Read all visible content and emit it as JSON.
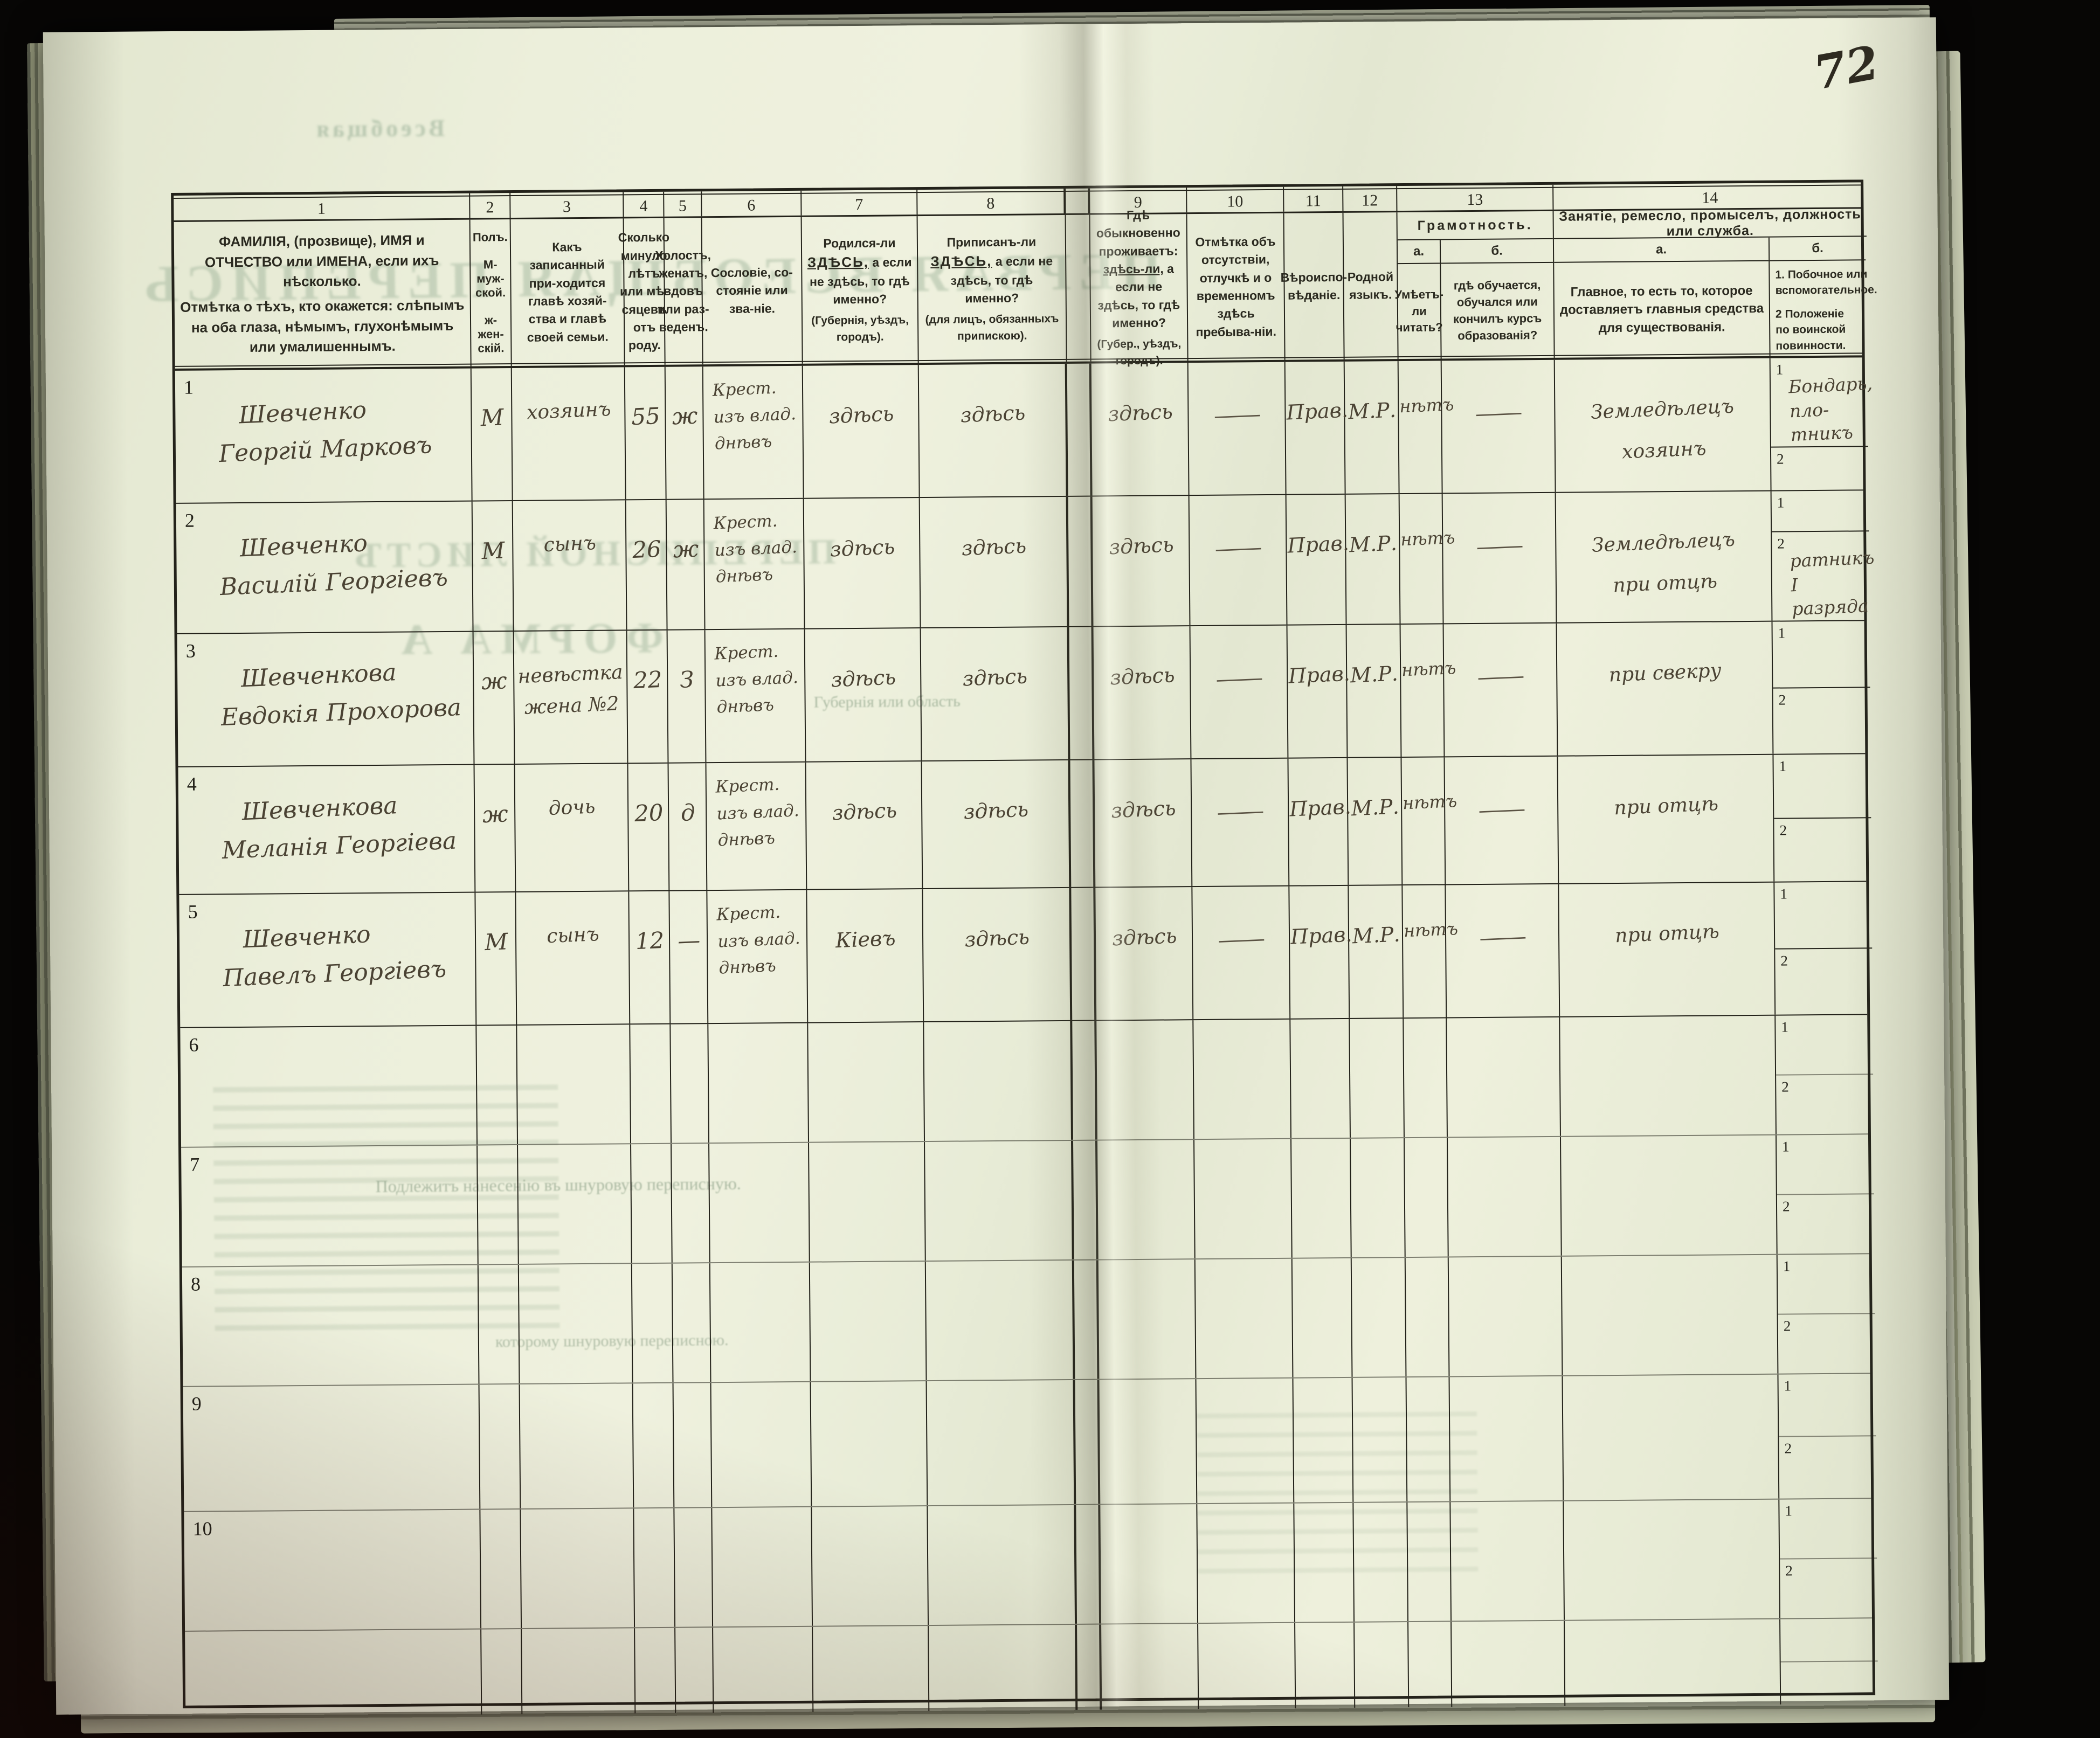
{
  "page": {
    "number": "72"
  },
  "form": {
    "col_numbers": [
      "1",
      "2",
      "3",
      "4",
      "5",
      "6",
      "7",
      "8",
      "9",
      "10",
      "11",
      "12",
      "13",
      "14"
    ],
    "sub1": "1",
    "sub2": "2",
    "headers": {
      "c1a": "ФАМИЛІЯ, (прозвище), ИМЯ и ОТЧЕСТВО или ИМЕНА, если ихъ нѣсколько.",
      "c1b": "Отмѣтка о тѣхъ, кто окажется: слѣпымъ на оба глаза, нѣмымъ, глухонѣмымъ или умалишеннымъ.",
      "c2_title": "Полъ.",
      "c2_m": "М-муж-ской.",
      "c2_f": "ж-жен-скій.",
      "c3": "Какъ записанный при-ходится главѣ хозяй-ства и главѣ своей семьи.",
      "c4": "Сколько минуло лѣтъ или мѣ-сяцевъ отъ роду.",
      "c5": "Холостъ, женатъ, вдовъ или раз-веденъ.",
      "c6": "Сословіе, со-стояніе или зва-ніе.",
      "c7": {
        "lead": "Родился-ли",
        "u": "ЗДѢСЬ,",
        "rest": "а если не здѣсь, то гдѣ именно?",
        "note": "(Губернія, уѣздъ, городъ)."
      },
      "c8": {
        "lead": "Приписанъ-ли",
        "u": "ЗДѢСЬ,",
        "rest": "а если не здѣсь, то гдѣ именно?",
        "note": "(для лицъ, обязанныхъ припискою)."
      },
      "c9": {
        "lead": "Гдѣ обыкновенно проживаетъ:",
        "u": "здѣсь-ли,",
        "rest": "а если не здѣсь, то гдѣ именно?",
        "note": "(Губер., уѣздъ, городъ)."
      },
      "c10": "Отмѣтка объ отсутствіи, отлучкѣ и о временномъ здѣсь пребыва-ніи.",
      "c11": "Вѣроиспо-вѣданіе.",
      "c12": "Родной языкъ.",
      "c13_title": "Грамотность.",
      "c13_a_label": "а.",
      "c13_b_label": "б.",
      "c13_a": "Умѣетъ-ли читать?",
      "c13_b": "гдѣ обучается, обучался или кончилъ курсъ образованія?",
      "c14_title": "Занятіе, ремесло, промыселъ, должность или служба.",
      "c14_a_label": "а.",
      "c14_b_label": "б.",
      "c14_a": "Главное, то есть то, которое доставляетъ главныя средства для существованія.",
      "c14_b1": "1.  Побочное или вспомогательное.",
      "c14_b2": "2  Положеніе по воинской повинности."
    }
  },
  "rows": [
    {
      "num": "1",
      "name": [
        "Шевченко",
        "Георгій Марковъ"
      ],
      "sex": "М",
      "relation": [
        "хозяинъ"
      ],
      "age": "55",
      "marital": "ж",
      "estate": [
        "Крест.",
        "изъ влад.",
        "днѣвъ"
      ],
      "born": "здѣсь",
      "registered": "здѣсь",
      "lives": "здѣсь",
      "absence": "—",
      "religion": "Прав.",
      "language": "М.Р.",
      "reads": "нѣтъ",
      "educated": "—",
      "main": [
        "Земледѣлецъ",
        "хозяинъ"
      ],
      "side1": [
        "Бондарь, пло-",
        "тникъ"
      ],
      "side2": []
    },
    {
      "num": "2",
      "name": [
        "Шевченко",
        "Василій Георгіевъ"
      ],
      "sex": "М",
      "relation": [
        "сынъ"
      ],
      "age": "26",
      "marital": "ж",
      "estate": [
        "Крест.",
        "изъ влад.",
        "днѣвъ"
      ],
      "born": "здѣсь",
      "registered": "здѣсь",
      "lives": "здѣсь",
      "absence": "—",
      "religion": "Прав.",
      "language": "М.Р.",
      "reads": "нѣтъ",
      "educated": "—",
      "main": [
        "Земледѣлецъ",
        "при отцѣ"
      ],
      "side1": [],
      "side2": [
        "ратникъ I разряда"
      ]
    },
    {
      "num": "3",
      "name": [
        "Шевченкова",
        "Евдокія Прохорова"
      ],
      "sex": "ж",
      "relation": [
        "невѣстка",
        "жена №2"
      ],
      "age": "22",
      "marital": "З",
      "estate": [
        "Крест.",
        "изъ влад.",
        "днѣвъ"
      ],
      "born": "здѣсь",
      "registered": "здѣсь",
      "lives": "здѣсь",
      "absence": "—",
      "religion": "Прав.",
      "language": "М.Р.",
      "reads": "нѣтъ",
      "educated": "—",
      "main": [
        "при свекру"
      ],
      "side1": [],
      "side2": []
    },
    {
      "num": "4",
      "name": [
        "Шевченкова",
        "Меланія Георгіева"
      ],
      "sex": "ж",
      "relation": [
        "дочь"
      ],
      "age": "20",
      "marital": "д",
      "estate": [
        "Крест.",
        "изъ влад.",
        "днѣвъ"
      ],
      "born": "здѣсь",
      "registered": "здѣсь",
      "lives": "здѣсь",
      "absence": "—",
      "religion": "Прав.",
      "language": "М.Р.",
      "reads": "нѣтъ",
      "educated": "—",
      "main": [
        "при отцѣ"
      ],
      "side1": [],
      "side2": []
    },
    {
      "num": "5",
      "name": [
        "Шевченко",
        "Павелъ Георгіевъ"
      ],
      "sex": "М",
      "relation": [
        "сынъ"
      ],
      "age": "12",
      "marital": "—",
      "estate": [
        "Крест.",
        "изъ влад.",
        "днѣвъ"
      ],
      "born": "Кіевъ",
      "registered": "здѣсь",
      "lives": "здѣсь",
      "absence": "—",
      "religion": "Прав.",
      "language": "М.Р.",
      "reads": "нѣтъ",
      "educated": "—",
      "main": [
        "при отцѣ"
      ],
      "side1": [],
      "side2": []
    },
    {
      "num": "6",
      "name": [],
      "sex": "",
      "relation": [],
      "age": "",
      "marital": "",
      "estate": [],
      "born": "",
      "registered": "",
      "lives": "",
      "absence": "",
      "religion": "",
      "language": "",
      "reads": "",
      "educated": "",
      "main": [],
      "side1": [],
      "side2": []
    },
    {
      "num": "7",
      "name": [],
      "sex": "",
      "relation": [],
      "age": "",
      "marital": "",
      "estate": [],
      "born": "",
      "registered": "",
      "lives": "",
      "absence": "",
      "religion": "",
      "language": "",
      "reads": "",
      "educated": "",
      "main": [],
      "side1": [],
      "side2": []
    },
    {
      "num": "8",
      "name": [],
      "sex": "",
      "relation": [],
      "age": "",
      "marital": "",
      "estate": [],
      "born": "",
      "registered": "",
      "lives": "",
      "absence": "",
      "religion": "",
      "language": "",
      "reads": "",
      "educated": "",
      "main": [],
      "side1": [],
      "side2": []
    },
    {
      "num": "9",
      "name": [],
      "sex": "",
      "relation": [],
      "age": "",
      "marital": "",
      "estate": [],
      "born": "",
      "registered": "",
      "lives": "",
      "absence": "",
      "religion": "",
      "language": "",
      "reads": "",
      "educated": "",
      "main": [],
      "side1": [],
      "side2": []
    },
    {
      "num": "10",
      "name": [],
      "sex": "",
      "relation": [],
      "age": "",
      "marital": "",
      "estate": [],
      "born": "",
      "registered": "",
      "lives": "",
      "absence": "",
      "religion": "",
      "language": "",
      "reads": "",
      "educated": "",
      "main": [],
      "side1": [],
      "side2": []
    }
  ],
  "bleedthrough": {
    "big_title": "ПЕРВАЯ ВСЕОБЩАЯ ПЕРЕПИСЬ",
    "list_title": "ПЕРЕПИСНОЙ ЛИСТЪ",
    "forma": "ФОРМА А",
    "top_word": "Всеобщая",
    "gub_line": "Губернія или область",
    "note_line": "Подлежитъ нанесенію въ шнуровую переписную.",
    "bottom_line": "которому шнуровую переписною."
  }
}
